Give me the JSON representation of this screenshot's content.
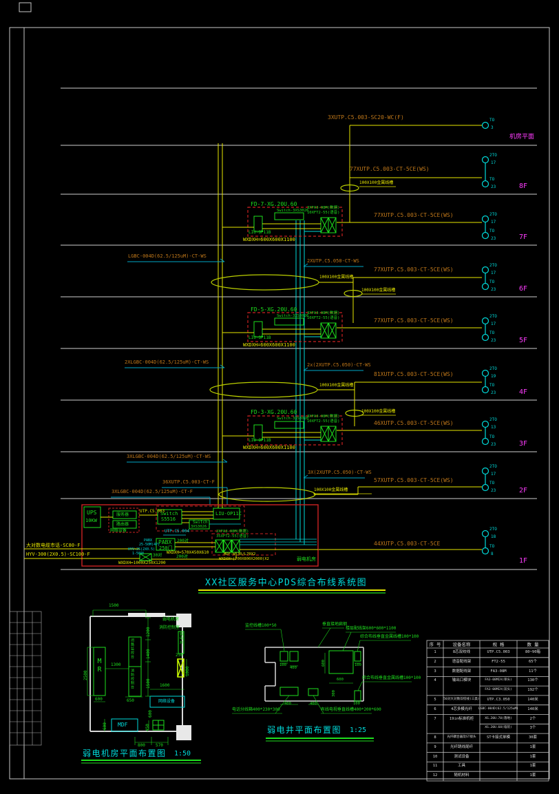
{
  "title": {
    "text": "XX社区服务中心PDS综合布线系统图"
  },
  "roof": {
    "cable": "3XUTP.C5.003-SC20-WC(F)",
    "floor": "机房平面",
    "to": "TO",
    "to_n": "3"
  },
  "tray": "100X100金属线槽",
  "floors": [
    {
      "name": "8F",
      "cable": "77XUTP.C5.003-CT-5CE(WS)",
      "to1": "2TO",
      "to1n": "17",
      "to2": "TO",
      "to2n": "23"
    },
    {
      "name": "7F",
      "cable": "77XUTP.C5.003-CT-5CE(WS)",
      "to1": "2TO",
      "to1n": "17",
      "to2": "TO",
      "to2n": "23"
    },
    {
      "name": "6F",
      "cable": "77XUTP.C5.003-CT-5CE(WS)",
      "to1": "2TO",
      "to1n": "17",
      "to2": "TO",
      "to2n": "23"
    },
    {
      "name": "5F",
      "cable": "77XUTP.C5.003-CT-5CE(WS)",
      "to1": "2TO",
      "to1n": "17",
      "to2": "TO",
      "to2n": "23"
    },
    {
      "name": "4F",
      "cable": "81XUTP.C5.003-CT-5CE(WS)",
      "to1": "2TO",
      "to1n": "19",
      "to2": "TO",
      "to2n": "23"
    },
    {
      "name": "3F",
      "cable": "46XUTP.C5.003-CT-5CE(WS)",
      "to1": "2TO",
      "to1n": "13",
      "to2": "TO",
      "to2n": "23"
    },
    {
      "name": "2F",
      "cable": "57XUTP.C5.003-CT-5CE(WS)",
      "to1": "2TO",
      "to1n": "17",
      "to2": "TO",
      "to2n": "23"
    },
    {
      "name": "1F",
      "cable": "44XUTP.C5.003-CT-5CE",
      "to1": "2TO",
      "to1n": "18",
      "to2": "TO",
      "to2n": "8"
    }
  ],
  "fd": [
    {
      "title": "FD-7-XG.20U.60",
      "sw": "Switch-3XS3026",
      "liu": "LIU-OP11B",
      "p1": "3XFA3-08M(数据)",
      "p2": "10XFT2-55(语音)",
      "size": "WXDXH=600X600X1100"
    },
    {
      "title": "FD-5-XG.20U.60",
      "sw": "Switch-3XS3026",
      "liu": "LIU-OP11B",
      "p1": "3XFA3-08M(数据)",
      "p2": "10XFT2-55(语音)",
      "size": "WXDXH=600X600X1100"
    },
    {
      "title": "FD-3-XG.20U.60",
      "sw": "Switch-3XS3026",
      "liu": "LIU-OP11B",
      "p1": "3XFA3-08M(数据)",
      "p2": "10XFT2-55(语音)",
      "size": "WXDXH=600X600X1100"
    }
  ],
  "risers": {
    "f6_fiber": "LGBC-004D(62.5/125uM)-CT-WS",
    "f6_voice": "2XUTP.C5.050-CT-WS",
    "f4_fiber": "2XLGBC-004D(62.5/125uM)-CT-WS",
    "f4_voice": "2x(2XUTP.C5.050)-CT-WS",
    "f2_fiber": "3XLGBC-004D(62.5/125uM)-CT-WS",
    "f2_voice": "3X(2XUTP.C5.050)-CT-WS",
    "f2_utp_f": "36XUTP.C5.003-CT-F",
    "f2_fiber_f": "3XLGBC-004D(62.5/125uM)-CT-F"
  },
  "room": {
    "ups1": "UPS",
    "ups2": "10KW",
    "server": "服务器",
    "router": "路由器",
    "group": "网络设备",
    "utp1": "UTP.C5.003",
    "utp2": "UTP.C5.004",
    "sw1a": "Switch",
    "sw1b": "S5516",
    "sw2a": "Switch",
    "sw2b": "3XS3026",
    "liu": "LIU-OP11C",
    "fa": "2XFA3-08M(数据)",
    "ft": "35XFT2-55(语音)",
    "pabx1": "PABX",
    "pabx2": "250门",
    "p200a": "200对",
    "p200b": "200对",
    "p30": "30对",
    "cy1": "PABX",
    "cy2": "25-50M(4P)",
    "cy3": "HYV-25(2X0.5)",
    "cy4": "1-50对",
    "size_pabx": "WXDXH=570X450X610",
    "mdf": "MDF-W.30/L70X2",
    "size_mdf": "WXDXH=(700X800X2000)X2",
    "room": "弱电机房",
    "size_tray": "WXDXH=1000X250X1200",
    "in1": "大对数电缆市话-SC80-F",
    "in2": "HYV-300(2X0.5)-SC100-F"
  },
  "plan_room": {
    "title": "弱电机房平面布置图",
    "scale": "1:50",
    "mr": "MR",
    "console1": "闭路监控台",
    "console2": "消防控制台",
    "net": "网络设备",
    "mdf": "MDF",
    "r1": "弱电机房",
    "r2": "消防控制室",
    "shaft": "弱电井",
    "d1500": "1500",
    "d2500": "2500",
    "d600a": "600",
    "d1300": "1300",
    "d650": "650",
    "d1200": "1200",
    "d1400": "1400",
    "d1500b": "1500",
    "d1600": "1600",
    "d600b": "600",
    "d600c": "600",
    "d450": "450",
    "d800": "800",
    "d570": "570",
    "d250": "250",
    "d1000": "1000"
  },
  "plan_shaft": {
    "title": "弱电井平面布置图",
    "scale": "1:25",
    "l1": "监控线槽100*50",
    "l2": "垂直接地扁钢",
    "l3": "楼层配线架600*600*1100",
    "l4": "综合布线垂直金属线槽100*100",
    "l5": "综合布线垂直金属线槽100*100",
    "l6": "电话分线箱400*230*300",
    "l7": "有线电视垂直线槽400*200*600",
    "d": [
      "100",
      "400",
      "600",
      "600",
      "100",
      "300",
      "400",
      "400",
      "100"
    ]
  },
  "bom": {
    "headers": [
      "序 号",
      "设备名称",
      "规 格",
      "数 量"
    ],
    "rows": [
      [
        "1",
        "8芯双绞线",
        "UTP.C5.003",
        "80~90箱"
      ],
      [
        "2",
        "语音配线架",
        "FT2-55",
        "65个"
      ],
      [
        "3",
        "数据配线架",
        "FA3-08M",
        "11个"
      ],
      [
        "4",
        "输出口模块",
        "FA3-08MIA(单头)",
        "130个"
      ],
      [
        "",
        "",
        "FA3-08MIA(双头)",
        "192个"
      ],
      [
        "5",
        "50对大对数双绞线(三类)",
        "UTP.C3.050",
        "140米"
      ],
      [
        "6",
        "4芯多模光纤",
        "LGBC-004D(62.5/125uM)",
        "140米"
      ],
      [
        "7",
        "19in标准机柜",
        "XG.20U.70(落地)",
        "2个"
      ],
      [
        "",
        "",
        "XG.20U.60(墙装)",
        "3个"
      ],
      [
        "8",
        "光纤耦合器及ST接头",
        "ST卡接式单模",
        "30套"
      ],
      [
        "9",
        "光纤跳线尾纤",
        "",
        "1套"
      ],
      [
        "10",
        "测试设备",
        "",
        "1套"
      ],
      [
        "11",
        "工具",
        "",
        "1套"
      ],
      [
        "12",
        "随机材料",
        "",
        "1套"
      ]
    ]
  }
}
